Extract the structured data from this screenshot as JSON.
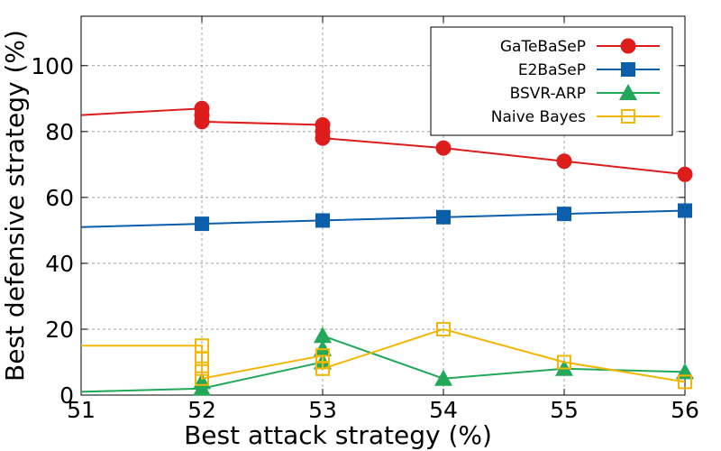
{
  "chart_data": {
    "type": "line",
    "xlabel": "Best attack strategy (%)",
    "ylabel": "Best defensive strategy (%)",
    "xlim": [
      51,
      56
    ],
    "ylim": [
      0,
      115
    ],
    "xticks": [
      "51",
      "52",
      "53",
      "54",
      "55",
      "56"
    ],
    "yticks": [
      "0",
      "20",
      "40",
      "60",
      "80",
      "100"
    ],
    "grid": true,
    "legend_position": "top-right",
    "series": [
      {
        "name": "GaTeBaSeP",
        "color": "#dd1c1c",
        "marker": "circle",
        "filled": true,
        "line": [
          [
            51,
            85
          ],
          [
            52,
            87
          ],
          [
            52,
            83
          ],
          [
            53,
            82
          ],
          [
            53,
            78
          ],
          [
            54,
            75
          ],
          [
            55,
            71
          ],
          [
            56,
            67
          ]
        ],
        "points": [
          [
            52,
            87
          ],
          [
            52,
            85
          ],
          [
            52,
            83
          ],
          [
            53,
            82
          ],
          [
            53,
            80
          ],
          [
            53,
            78
          ],
          [
            54,
            75
          ],
          [
            55,
            71
          ],
          [
            56,
            67
          ]
        ]
      },
      {
        "name": "E2BaSeP",
        "color": "#0a5eaa",
        "marker": "square",
        "filled": true,
        "line": [
          [
            51,
            51
          ],
          [
            52,
            52
          ],
          [
            53,
            53
          ],
          [
            54,
            54
          ],
          [
            55,
            55
          ],
          [
            56,
            56
          ]
        ],
        "points": [
          [
            52,
            52
          ],
          [
            53,
            53
          ],
          [
            54,
            54
          ],
          [
            55,
            55
          ],
          [
            56,
            56
          ]
        ]
      },
      {
        "name": "BSVR-ARP",
        "color": "#23a85a",
        "marker": "triangle",
        "filled": true,
        "line": [
          [
            51,
            1
          ],
          [
            52,
            2
          ],
          [
            53,
            10
          ],
          [
            53,
            18
          ],
          [
            54,
            5
          ],
          [
            55,
            8
          ],
          [
            56,
            7
          ]
        ],
        "points": [
          [
            52,
            2
          ],
          [
            52,
            4
          ],
          [
            53,
            10
          ],
          [
            53,
            14
          ],
          [
            53,
            18
          ],
          [
            54,
            5
          ],
          [
            55,
            8
          ],
          [
            56,
            7
          ]
        ]
      },
      {
        "name": "Naive Bayes",
        "color": "#f2b705",
        "marker": "square",
        "filled": false,
        "line": [
          [
            51,
            15
          ],
          [
            52,
            15
          ],
          [
            52,
            5
          ],
          [
            53,
            12
          ],
          [
            53,
            8
          ],
          [
            54,
            20
          ],
          [
            55,
            10
          ],
          [
            56,
            4
          ]
        ],
        "points": [
          [
            52,
            15
          ],
          [
            52,
            11
          ],
          [
            52,
            8
          ],
          [
            52,
            5
          ],
          [
            53,
            12
          ],
          [
            53,
            10
          ],
          [
            53,
            8
          ],
          [
            54,
            20
          ],
          [
            55,
            10
          ],
          [
            56,
            4
          ]
        ]
      }
    ]
  }
}
